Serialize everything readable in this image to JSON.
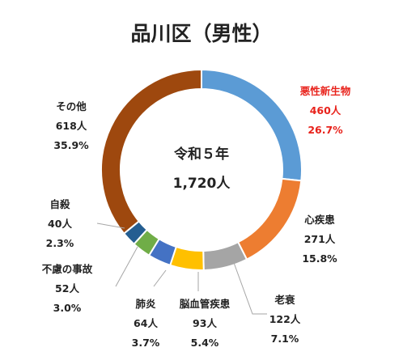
{
  "chart_data": {
    "type": "pie",
    "title": "品川区（男性）",
    "center": {
      "line1": "令和５年",
      "line2": "1,720人"
    },
    "slices": [
      {
        "label": "悪性新生物",
        "count": "460人",
        "percent_label": "26.7%",
        "percent": 26.7,
        "color": "#5b9bd5",
        "highlight": true
      },
      {
        "label": "心疾患",
        "count": "271人",
        "percent_label": "15.8%",
        "percent": 15.8,
        "color": "#ed7d31",
        "highlight": false
      },
      {
        "label": "老衰",
        "count": "122人",
        "percent_label": "7.1%",
        "percent": 7.1,
        "color": "#a5a5a5",
        "highlight": false
      },
      {
        "label": "脳血管疾患",
        "count": "93人",
        "percent_label": "5.4%",
        "percent": 5.4,
        "color": "#ffc000",
        "highlight": false
      },
      {
        "label": "肺炎",
        "count": "64人",
        "percent_label": "3.7%",
        "percent": 3.7,
        "color": "#4472c4",
        "highlight": false
      },
      {
        "label": "不慮の事故",
        "count": "52人",
        "percent_label": "3.0%",
        "percent": 3.0,
        "color": "#70ad47",
        "highlight": false
      },
      {
        "label": "自殺",
        "count": "40人",
        "percent_label": "2.3%",
        "percent": 2.3,
        "color": "#255e91",
        "highlight": false
      },
      {
        "label": "その他",
        "count": "618人",
        "percent_label": "35.9%",
        "percent": 35.9,
        "color": "#9e480e",
        "highlight": false
      }
    ]
  }
}
